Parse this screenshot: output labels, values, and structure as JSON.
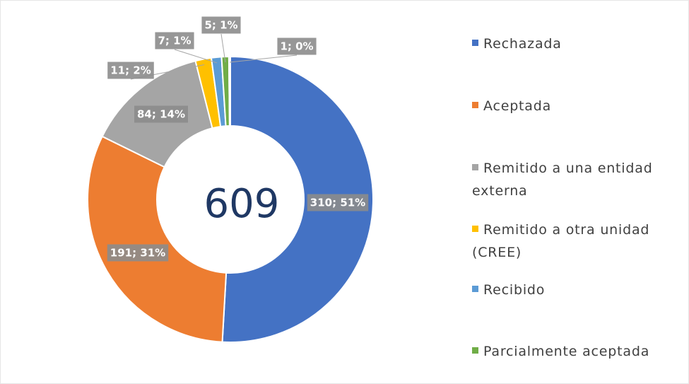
{
  "chart_data": {
    "type": "donut",
    "categories": [
      "Rechazada",
      "Aceptada",
      "Remitido a una entidad externa",
      "Remitido a otra unidad (CREE)",
      "Recibido",
      "Parcialmente aceptada",
      null
    ],
    "values": [
      310,
      191,
      84,
      11,
      7,
      5,
      1
    ],
    "value_labels": [
      "310; 51%",
      "191; 31%",
      "84; 14%",
      "11; 2%",
      "7; 1%",
      "5; 1%",
      "1; 0%"
    ],
    "colors": [
      "#4472c4",
      "#ed7d31",
      "#a5a5a5",
      "#ffc000",
      "#5b9bd5",
      "#70ad47",
      "#264478"
    ],
    "center_text": "609",
    "legend": "right"
  }
}
